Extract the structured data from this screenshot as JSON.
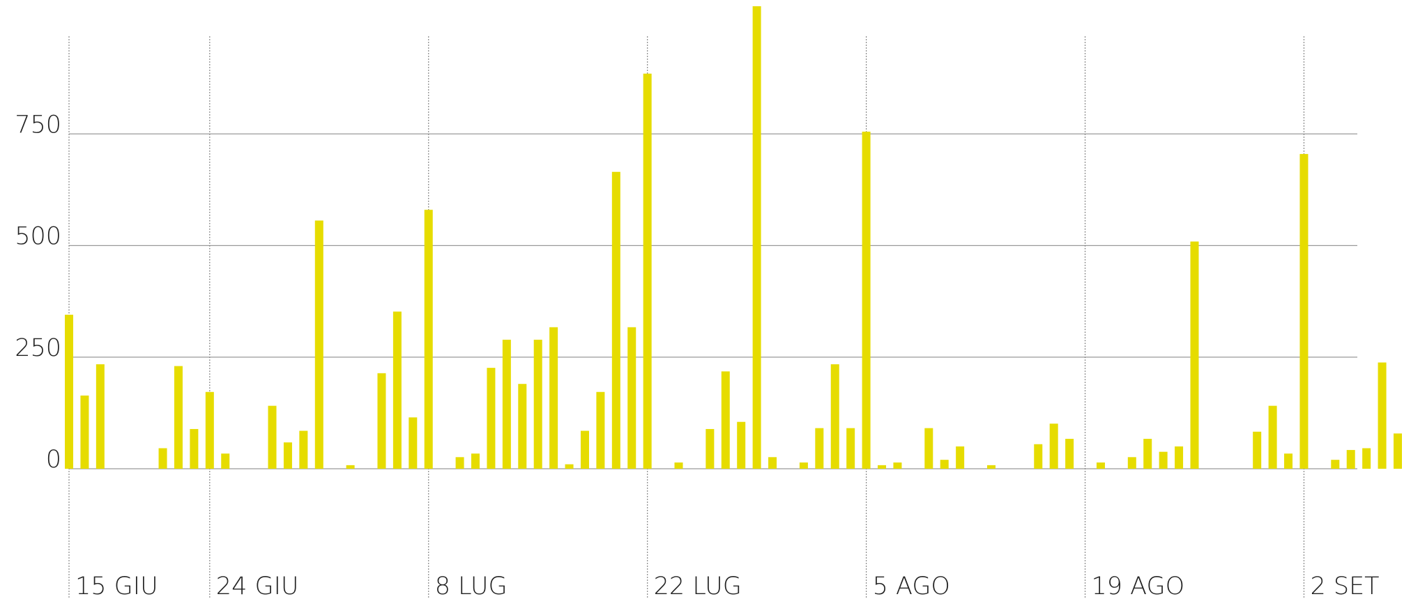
{
  "chart_data": {
    "type": "bar",
    "categories": [
      "15 GIU",
      null,
      null,
      null,
      null,
      null,
      null,
      null,
      null,
      "24 GIU",
      null,
      null,
      null,
      null,
      null,
      null,
      null,
      null,
      null,
      null,
      null,
      null,
      null,
      "8 LUG",
      null,
      null,
      null,
      null,
      null,
      null,
      null,
      null,
      null,
      null,
      null,
      null,
      null,
      "22 LUG",
      null,
      null,
      null,
      null,
      null,
      null,
      null,
      null,
      null,
      null,
      null,
      null,
      null,
      "5 AGO",
      null,
      null,
      null,
      null,
      null,
      null,
      null,
      null,
      null,
      null,
      null,
      null,
      null,
      "19 AGO",
      null,
      null,
      null,
      null,
      null,
      null,
      null,
      null,
      null,
      null,
      null,
      null,
      null,
      "2 SET",
      null,
      null,
      null,
      null,
      null,
      null
    ],
    "values": [
      345,
      164,
      234,
      null,
      null,
      null,
      46,
      230,
      89,
      172,
      34,
      null,
      null,
      141,
      59,
      85,
      556,
      null,
      8,
      null,
      214,
      352,
      115,
      580,
      null,
      26,
      34,
      226,
      289,
      190,
      289,
      317,
      10,
      85,
      172,
      665,
      317,
      885,
      null,
      14,
      null,
      89,
      218,
      105,
      1036,
      26,
      null,
      14,
      91,
      234,
      91,
      755,
      8,
      14,
      null,
      91,
      20,
      50,
      null,
      8,
      null,
      null,
      55,
      101,
      67,
      null,
      14,
      null,
      26,
      67,
      38,
      50,
      509,
      null,
      null,
      null,
      83,
      141,
      34,
      705,
      null,
      20,
      42,
      46,
      238,
      79
    ],
    "color": "#e6dc00",
    "ylim": [
      0,
      1000
    ],
    "yticks": [
      0,
      250,
      500,
      750
    ],
    "grid": true
  }
}
